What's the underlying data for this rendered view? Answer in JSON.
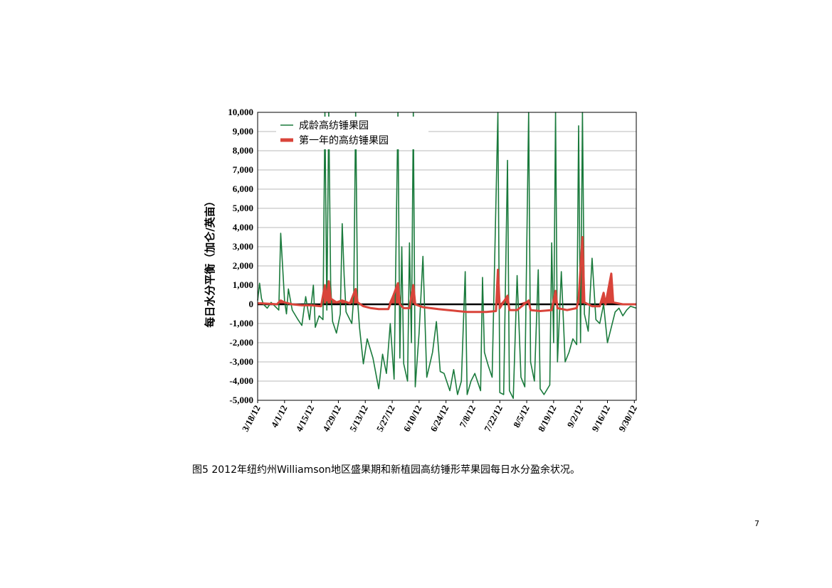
{
  "chart_data": {
    "type": "line",
    "title": "",
    "xlabel": "",
    "ylabel": "每日水分平衡（加仑/英亩）",
    "ylim": [
      -5000,
      10000
    ],
    "yticks": [
      -5000,
      -4000,
      -3000,
      -2000,
      -1000,
      0,
      1000,
      2000,
      3000,
      4000,
      5000,
      6000,
      7000,
      8000,
      9000,
      10000
    ],
    "ytick_labels": [
      "-5,000",
      "-4,000",
      "-3,000",
      "-2,000",
      "-1,000",
      "0",
      "1,000",
      "2,000",
      "3,000",
      "4,000",
      "5,000",
      "6,000",
      "7,000",
      "8,000",
      "9,000",
      "10,000"
    ],
    "x_start": "3/18/12",
    "x_end": "10/1/12",
    "xtick_labels": [
      "3/18/12",
      "4/1/12",
      "4/15/12",
      "4/29/12",
      "5/13/12",
      "5/27/12",
      "6/10/12",
      "6/24/12",
      "7/8/12",
      "7/22/12",
      "8/5/12",
      "8/19/12",
      "9/2/12",
      "9/16/12",
      "9/30/12"
    ],
    "grid": true,
    "legend_position": "top-left",
    "series": [
      {
        "name": "成龄高纺锤果园",
        "color": "#1a7a3c",
        "points": [
          [
            "3/18/12",
            200
          ],
          [
            "3/19/12",
            1100
          ],
          [
            "3/20/12",
            300
          ],
          [
            "3/21/12",
            0
          ],
          [
            "3/23/12",
            -200
          ],
          [
            "3/25/12",
            100
          ],
          [
            "3/27/12",
            -100
          ],
          [
            "3/29/12",
            -300
          ],
          [
            "3/30/12",
            3700
          ],
          [
            "4/1/12",
            200
          ],
          [
            "4/2/12",
            -500
          ],
          [
            "4/3/12",
            800
          ],
          [
            "4/5/12",
            -300
          ],
          [
            "4/8/12",
            -800
          ],
          [
            "4/10/12",
            -1100
          ],
          [
            "4/12/12",
            400
          ],
          [
            "4/14/12",
            -800
          ],
          [
            "4/16/12",
            1000
          ],
          [
            "4/17/12",
            -1200
          ],
          [
            "4/19/12",
            -600
          ],
          [
            "4/21/12",
            -800
          ],
          [
            "4/22/12",
            10000
          ],
          [
            "4/23/12",
            -300
          ],
          [
            "4/24/12",
            10000
          ],
          [
            "4/25/12",
            1000
          ],
          [
            "4/26/12",
            -900
          ],
          [
            "4/28/12",
            -1500
          ],
          [
            "4/30/12",
            -500
          ],
          [
            "5/1/12",
            4200
          ],
          [
            "5/2/12",
            1500
          ],
          [
            "5/3/12",
            -400
          ],
          [
            "5/5/12",
            -800
          ],
          [
            "5/6/12",
            -1000
          ],
          [
            "5/7/12",
            400
          ],
          [
            "5/8/12",
            10000
          ],
          [
            "5/9/12",
            200
          ],
          [
            "5/10/12",
            -1200
          ],
          [
            "5/12/12",
            -3100
          ],
          [
            "5/14/12",
            -1800
          ],
          [
            "5/17/12",
            -2800
          ],
          [
            "5/20/12",
            -4400
          ],
          [
            "5/22/12",
            -2600
          ],
          [
            "5/24/12",
            -3600
          ],
          [
            "5/26/12",
            -1000
          ],
          [
            "5/28/12",
            -3900
          ],
          [
            "5/30/12",
            10000
          ],
          [
            "5/31/12",
            -2800
          ],
          [
            "6/1/12",
            3000
          ],
          [
            "6/2/12",
            -3100
          ],
          [
            "6/4/12",
            -4000
          ],
          [
            "6/5/12",
            3200
          ],
          [
            "6/6/12",
            -2000
          ],
          [
            "6/7/12",
            10000
          ],
          [
            "6/8/12",
            -4300
          ],
          [
            "6/10/12",
            -1500
          ],
          [
            "6/12/12",
            2500
          ],
          [
            "6/14/12",
            -3800
          ],
          [
            "6/17/12",
            -2500
          ],
          [
            "6/19/12",
            -900
          ],
          [
            "6/21/12",
            -3500
          ],
          [
            "6/23/12",
            -3600
          ],
          [
            "6/26/12",
            -4500
          ],
          [
            "6/28/12",
            -3400
          ],
          [
            "6/30/12",
            -4700
          ],
          [
            "7/2/12",
            -4000
          ],
          [
            "7/4/12",
            1700
          ],
          [
            "7/5/12",
            -4700
          ],
          [
            "7/7/12",
            -4000
          ],
          [
            "7/9/12",
            -3600
          ],
          [
            "7/12/12",
            -4500
          ],
          [
            "7/13/12",
            1400
          ],
          [
            "7/14/12",
            -2500
          ],
          [
            "7/16/12",
            -3200
          ],
          [
            "7/18/12",
            -3800
          ],
          [
            "7/21/12",
            10000
          ],
          [
            "7/22/12",
            -4600
          ],
          [
            "7/24/12",
            -4700
          ],
          [
            "7/26/12",
            7500
          ],
          [
            "7/27/12",
            -4500
          ],
          [
            "7/29/12",
            -4900
          ],
          [
            "7/31/12",
            1500
          ],
          [
            "8/2/12",
            -3800
          ],
          [
            "8/4/12",
            -4300
          ],
          [
            "8/6/12",
            10000
          ],
          [
            "8/7/12",
            -3000
          ],
          [
            "8/9/12",
            -4000
          ],
          [
            "8/11/12",
            1800
          ],
          [
            "8/12/12",
            -4400
          ],
          [
            "8/14/12",
            -4700
          ],
          [
            "8/17/12",
            -4200
          ],
          [
            "8/18/12",
            3200
          ],
          [
            "8/19/12",
            -2000
          ],
          [
            "8/20/12",
            10000
          ],
          [
            "8/21/12",
            -3000
          ],
          [
            "8/23/12",
            1700
          ],
          [
            "8/25/12",
            -3000
          ],
          [
            "8/27/12",
            -2500
          ],
          [
            "8/29/12",
            -1800
          ],
          [
            "8/31/12",
            -2100
          ],
          [
            "9/1/12",
            9300
          ],
          [
            "9/2/12",
            -2000
          ],
          [
            "9/3/12",
            10000
          ],
          [
            "9/4/12",
            -500
          ],
          [
            "9/6/12",
            -1400
          ],
          [
            "9/8/12",
            2400
          ],
          [
            "9/10/12",
            -800
          ],
          [
            "9/12/12",
            -1000
          ],
          [
            "9/14/12",
            0
          ],
          [
            "9/16/12",
            -2000
          ],
          [
            "9/18/12",
            -1200
          ],
          [
            "9/20/12",
            -400
          ],
          [
            "9/22/12",
            -200
          ],
          [
            "9/24/12",
            -600
          ],
          [
            "9/26/12",
            -300
          ],
          [
            "9/28/12",
            -100
          ],
          [
            "10/1/12",
            -200
          ]
        ]
      },
      {
        "name": "第一年的高纺锤果园",
        "color": "#d9443a",
        "points": [
          [
            "3/18/12",
            50
          ],
          [
            "3/20/12",
            50
          ],
          [
            "3/24/12",
            30
          ],
          [
            "3/28/12",
            0
          ],
          [
            "3/30/12",
            200
          ],
          [
            "4/1/12",
            100
          ],
          [
            "4/5/12",
            0
          ],
          [
            "4/10/12",
            -50
          ],
          [
            "4/15/12",
            -50
          ],
          [
            "4/20/12",
            -100
          ],
          [
            "4/22/12",
            1000
          ],
          [
            "4/23/12",
            200
          ],
          [
            "4/24/12",
            1200
          ],
          [
            "4/25/12",
            300
          ],
          [
            "4/28/12",
            100
          ],
          [
            "5/1/12",
            200
          ],
          [
            "5/5/12",
            50
          ],
          [
            "5/8/12",
            800
          ],
          [
            "5/9/12",
            100
          ],
          [
            "5/12/12",
            -100
          ],
          [
            "5/16/12",
            -200
          ],
          [
            "5/20/12",
            -250
          ],
          [
            "5/25/12",
            -250
          ],
          [
            "5/30/12",
            1100
          ],
          [
            "5/31/12",
            0
          ],
          [
            "6/2/12",
            -200
          ],
          [
            "6/5/12",
            -200
          ],
          [
            "6/7/12",
            1000
          ],
          [
            "6/8/12",
            0
          ],
          [
            "6/12/12",
            -150
          ],
          [
            "6/16/12",
            -200
          ],
          [
            "6/20/12",
            -250
          ],
          [
            "6/25/12",
            -300
          ],
          [
            "6/30/12",
            -350
          ],
          [
            "7/5/12",
            -400
          ],
          [
            "7/10/12",
            -400
          ],
          [
            "7/15/12",
            -400
          ],
          [
            "7/20/12",
            -350
          ],
          [
            "7/21/12",
            1800
          ],
          [
            "7/22/12",
            -200
          ],
          [
            "7/26/12",
            450
          ],
          [
            "7/27/12",
            -300
          ],
          [
            "7/31/12",
            -300
          ],
          [
            "8/6/12",
            200
          ],
          [
            "8/7/12",
            -300
          ],
          [
            "8/12/12",
            -350
          ],
          [
            "8/18/12",
            -300
          ],
          [
            "8/20/12",
            700
          ],
          [
            "8/21/12",
            -200
          ],
          [
            "8/26/12",
            -300
          ],
          [
            "8/31/12",
            -200
          ],
          [
            "9/1/12",
            300
          ],
          [
            "9/3/12",
            3500
          ],
          [
            "9/4/12",
            100
          ],
          [
            "9/8/12",
            -100
          ],
          [
            "9/12/12",
            -100
          ],
          [
            "9/14/12",
            600
          ],
          [
            "9/15/12",
            0
          ],
          [
            "9/18/12",
            1600
          ],
          [
            "9/19/12",
            100
          ],
          [
            "9/24/12",
            0
          ],
          [
            "10/1/12",
            0
          ]
        ]
      }
    ]
  },
  "caption": "图5 2012年纽约州Williamson地区盛果期和新植园高纺锤形苹果园每日水分盈余状况。",
  "page_number": "7"
}
